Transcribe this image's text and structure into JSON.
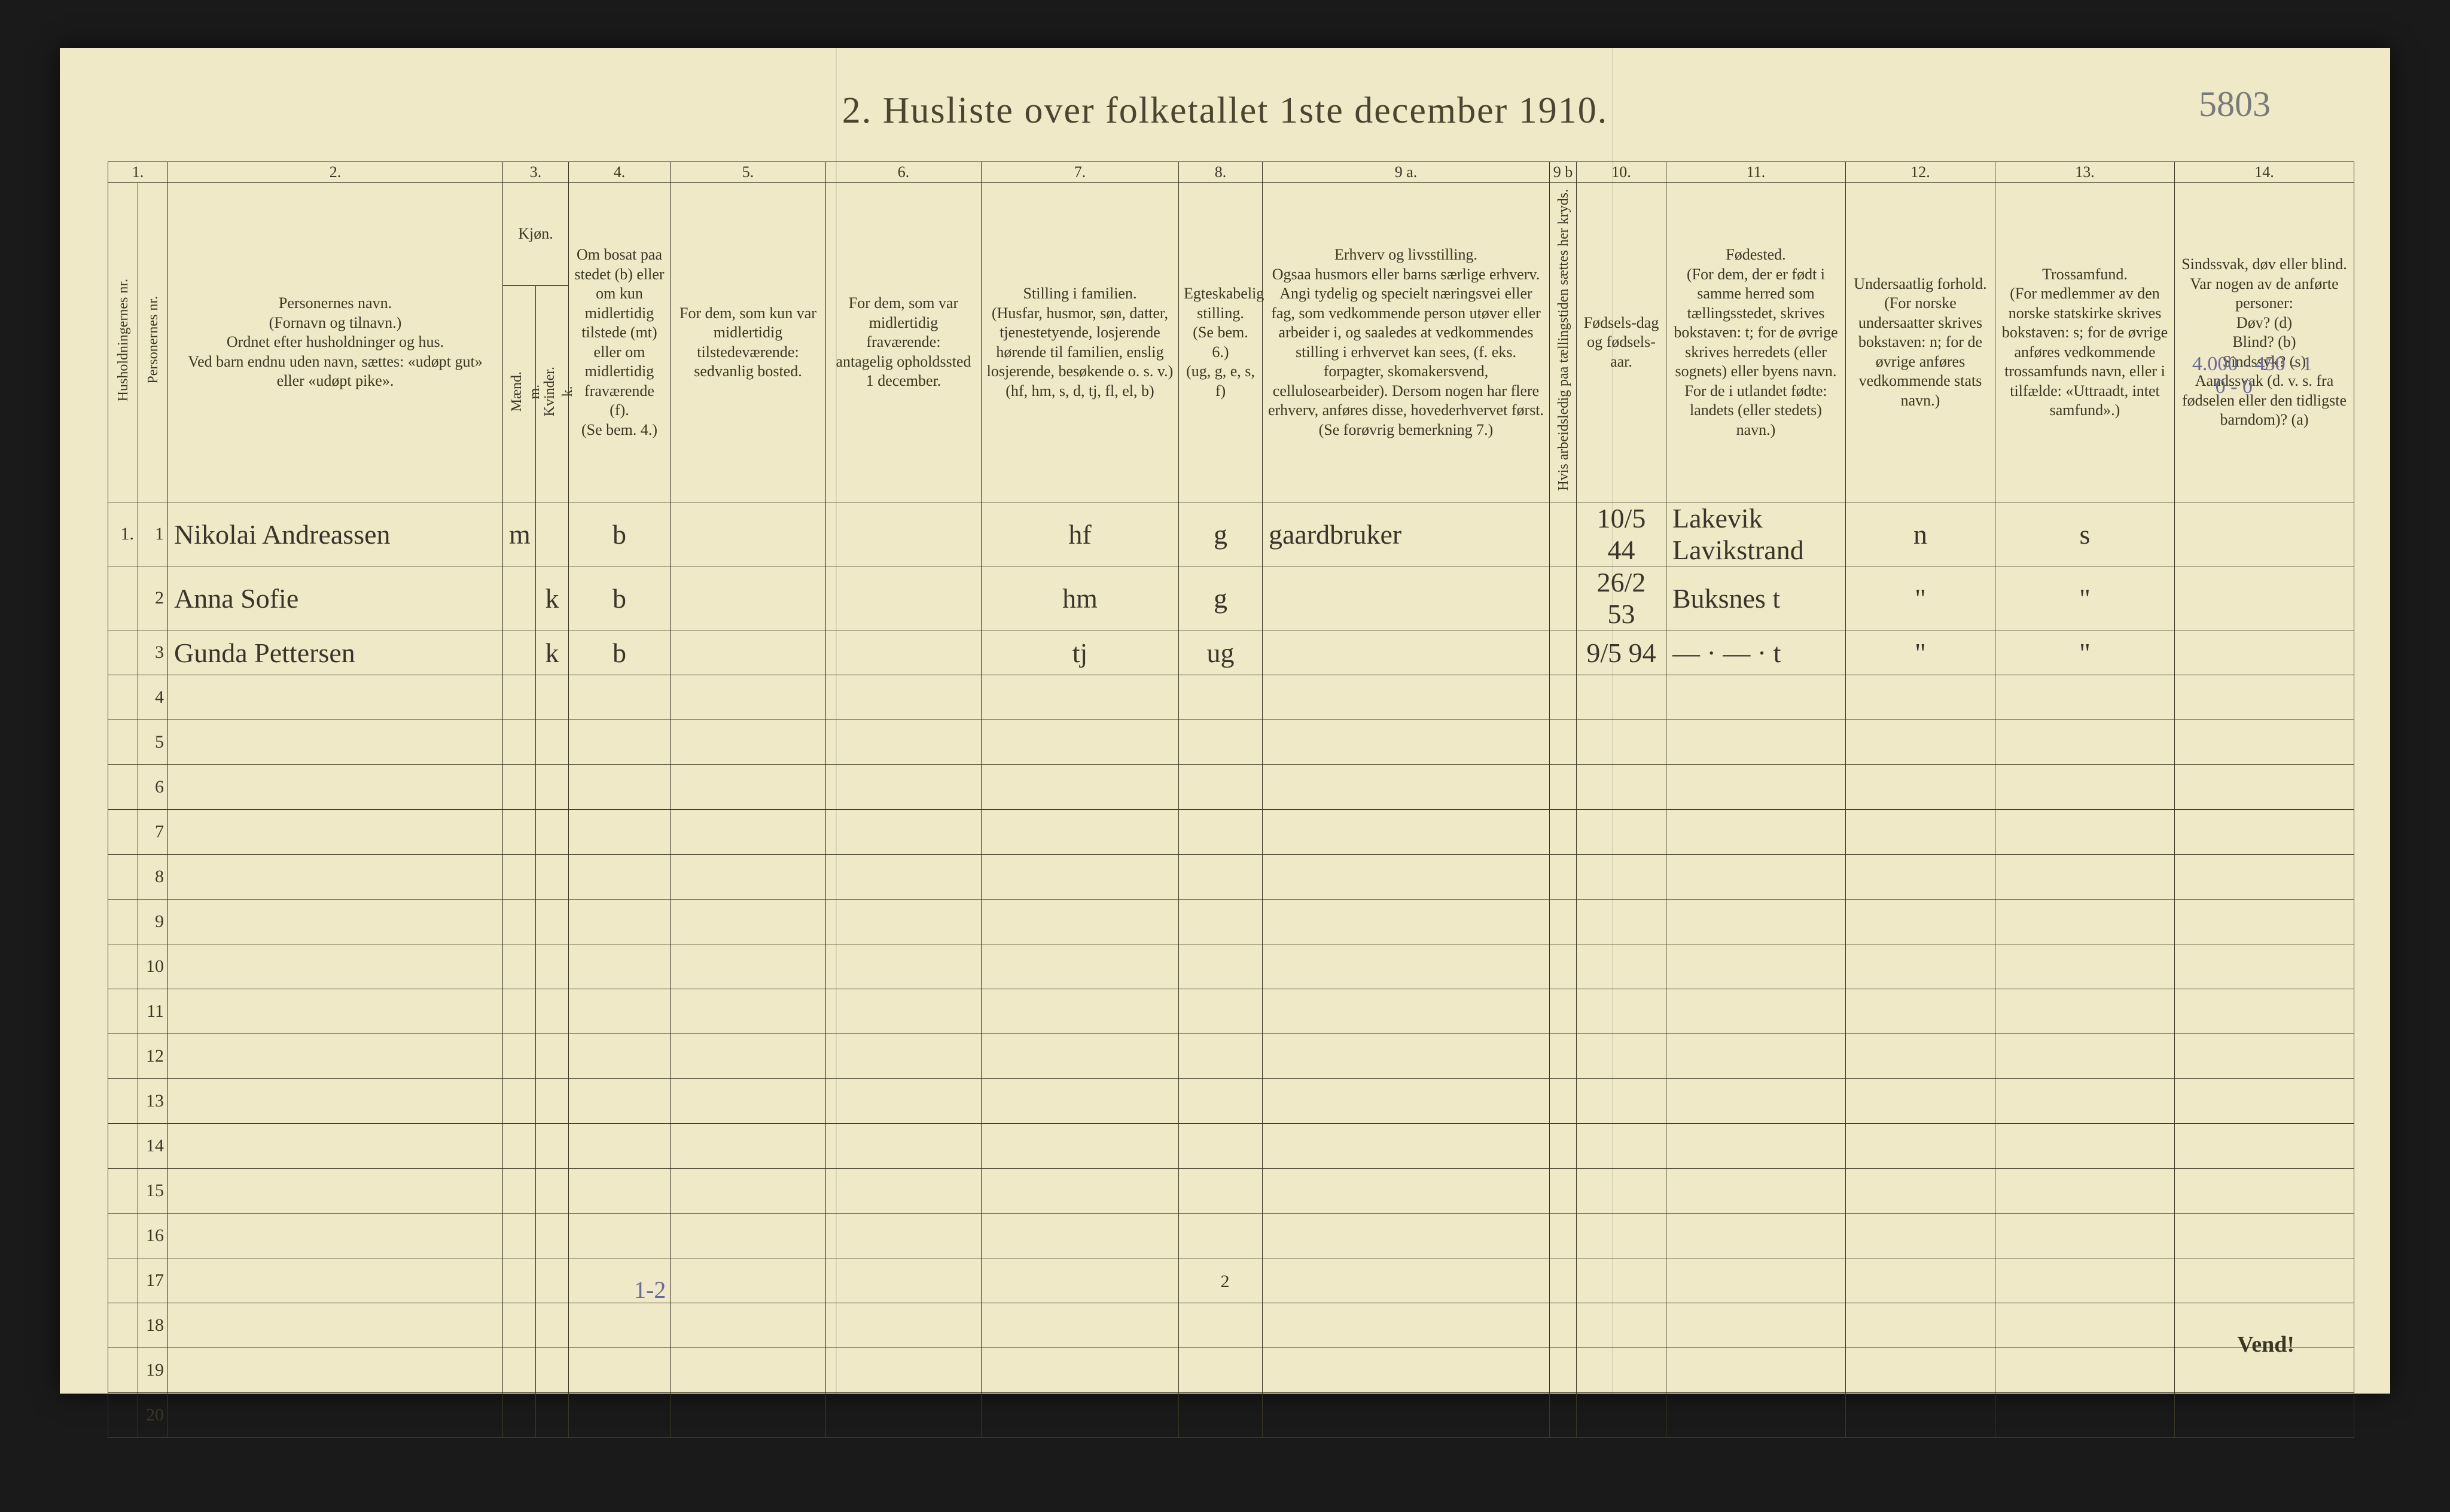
{
  "page": {
    "title": "2.  Husliste over folketallet 1ste december 1910.",
    "cornerNote": "5803",
    "footerPage": "2",
    "footerVend": "Vend!",
    "bottomMargin": "1-2",
    "topRightMargin1": "4.000 - 450 - 1",
    "topRightMargin2": "0 - 0"
  },
  "columns": {
    "nums": [
      "1.",
      "",
      "2.",
      "3.",
      "",
      "4.",
      "5.",
      "6.",
      "7.",
      "8.",
      "9 a.",
      "9 b",
      "10.",
      "11.",
      "12.",
      "13.",
      "14."
    ],
    "h1a": "Husholdningernes nr.",
    "h1b": "Personernes nr.",
    "h2": "Personernes navn.\n(Fornavn og tilnavn.)\nOrdnet efter husholdninger og hus.\nVed barn endnu uden navn, sættes: «udøpt gut» eller «udøpt pike».",
    "h3": "Kjøn.",
    "h3a": "Mænd.\nm.",
    "h3b": "Kvinder.\nk.",
    "h4": "Om bosat paa stedet (b) eller om kun midlertidig tilstede (mt) eller om midlertidig fraværende (f).\n(Se bem. 4.)",
    "h5": "For dem, som kun var midlertidig tilstedeværende:\nsedvanlig bosted.",
    "h6": "For dem, som var midlertidig fraværende:\nantagelig opholdssted 1 december.",
    "h7": "Stilling i familien.\n(Husfar, husmor, søn, datter, tjenestetyende, losjerende hørende til familien, enslig losjerende, besøkende o. s. v.)\n(hf, hm, s, d, tj, fl, el, b)",
    "h8": "Egteskabelig stilling.\n(Se bem. 6.)\n(ug, g, e, s, f)",
    "h9a": "Erhverv og livsstilling.\nOgsaa husmors eller barns særlige erhverv. Angi tydelig og specielt næringsvei eller fag, som vedkommende person utøver eller arbeider i, og saaledes at vedkommendes stilling i erhvervet kan sees, (f. eks. forpagter, skomakersvend, cellulosearbeider). Dersom nogen har flere erhverv, anføres disse, hovederhvervet først.\n(Se forøvrig bemerkning 7.)",
    "h9b": "Hvis arbeidsledig paa tællingstiden sættes her kryds.",
    "h10": "Fødsels-dag og fødsels-aar.",
    "h11": "Fødested.\n(For dem, der er født i samme herred som tællingsstedet, skrives bokstaven: t; for de øvrige skrives herredets (eller sognets) eller byens navn. For de i utlandet fødte: landets (eller stedets) navn.)",
    "h12": "Undersaatlig forhold.\n(For norske undersaatter skrives bokstaven: n; for de øvrige anføres vedkommende stats navn.)",
    "h13": "Trossamfund.\n(For medlemmer av den norske statskirke skrives bokstaven: s; for de øvrige anføres vedkommende trossamfunds navn, eller i tilfælde: «Uttraadt, intet samfund».)",
    "h14": "Sindssvak, døv eller blind.\nVar nogen av de anførte personer:\nDøv? (d)\nBlind? (b)\nSindssyk? (s)\nAandssvak (d. v. s. fra fødselen eller den tidligste barndom)? (a)"
  },
  "rows": [
    {
      "hh": "1.",
      "pn": "1",
      "name": "Nikolai Andreassen",
      "m": "m",
      "k": "",
      "b": "b",
      "c5": "",
      "c6": "",
      "fam": "hf",
      "eg": "g",
      "erhv": "gaardbruker",
      "x": "",
      "dob": "10/5 44",
      "fsted": "Lakevik  Lavikstrand",
      "und": "n",
      "tro": "s",
      "c14": ""
    },
    {
      "hh": "",
      "pn": "2",
      "name": "Anna Sofie",
      "m": "",
      "k": "k",
      "b": "b",
      "c5": "",
      "c6": "",
      "fam": "hm",
      "eg": "g",
      "erhv": "",
      "x": "",
      "dob": "26/2 53",
      "fsted": "Buksnes  t",
      "und": "\"",
      "tro": "\"",
      "c14": ""
    },
    {
      "hh": "",
      "pn": "3",
      "name": "Gunda Pettersen",
      "m": "",
      "k": "k",
      "b": "b",
      "c5": "",
      "c6": "",
      "fam": "tj",
      "eg": "ug",
      "erhv": "",
      "x": "",
      "dob": "9/5 94",
      "fsted": "— · — ·  t",
      "und": "\"",
      "tro": "\"",
      "c14": ""
    }
  ],
  "emptyRows": 17,
  "style": {
    "paper": "#efe9c8",
    "ink": "#3b3724",
    "pencil": "#7a7a7a",
    "bluePencil": "#6a6a9a",
    "scriptColor": "#3a342a"
  }
}
